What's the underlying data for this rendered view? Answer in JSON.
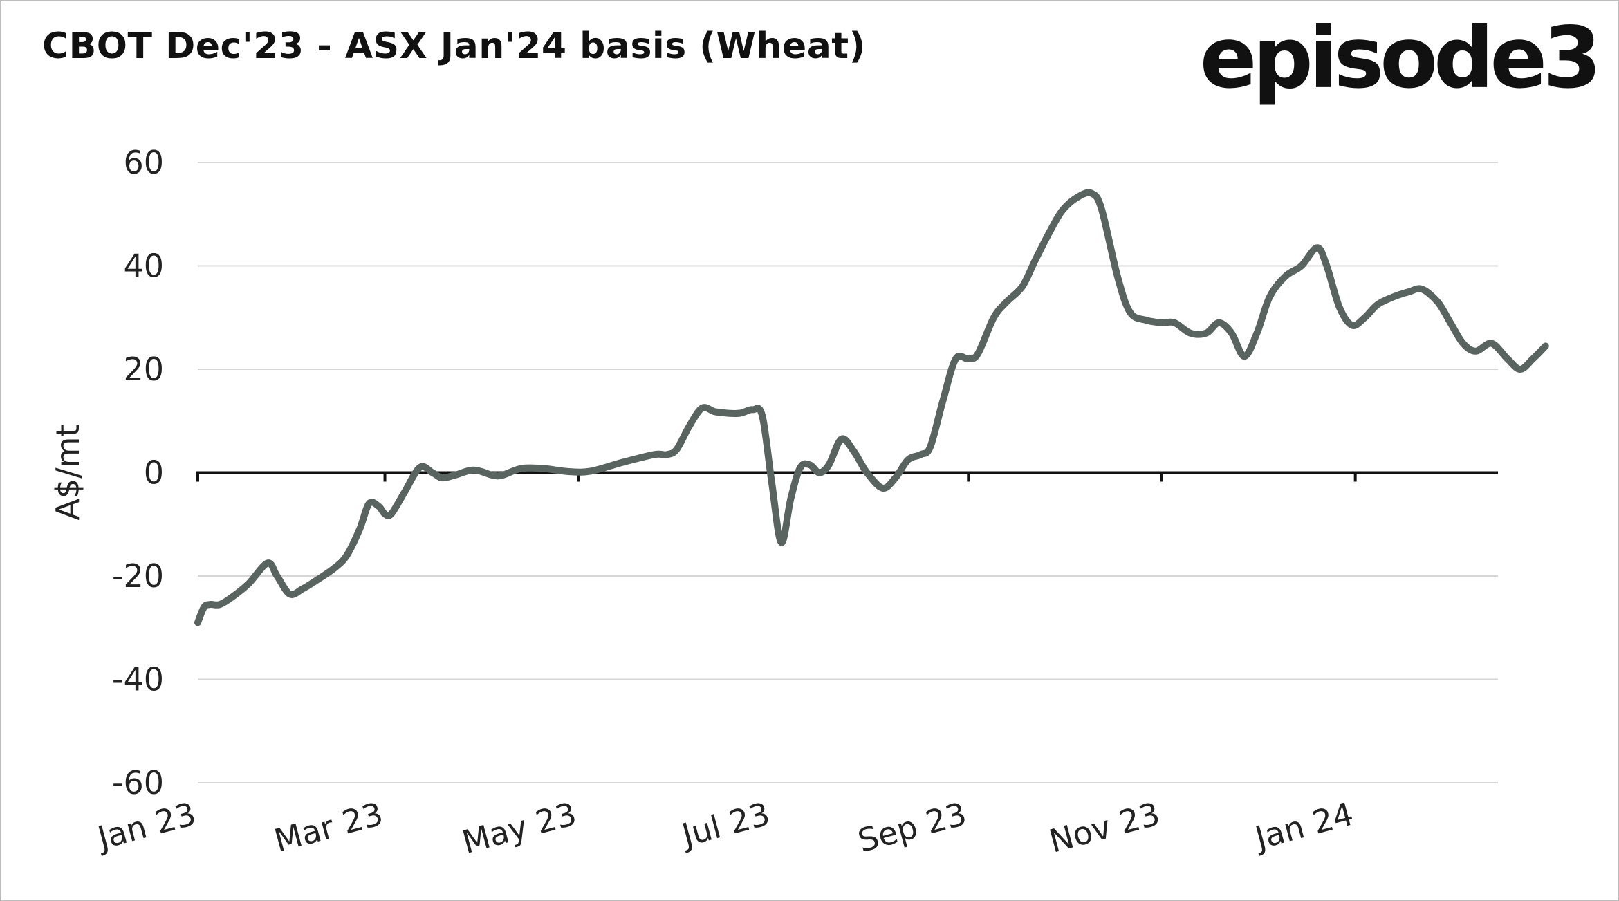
{
  "chart_data": {
    "type": "line",
    "title": "CBOT Dec'23 - ASX Jan'24 basis (Wheat)",
    "ylabel": "A$/mt",
    "xlabel": "",
    "ylim": [
      -60,
      60
    ],
    "yticks": [
      60,
      40,
      20,
      0,
      -20,
      -40,
      -60
    ],
    "xlim": [
      "2023-01-01",
      "2024-02-15"
    ],
    "xtick_labels": [
      "Jan 23",
      "Mar 23",
      "May 23",
      "Jul 23",
      "Sep 23",
      "Nov 23",
      "Jan 24"
    ],
    "xtick_dates": [
      "2023-01-01",
      "2023-03-01",
      "2023-05-01",
      "2023-07-01",
      "2023-09-01",
      "2023-11-01",
      "2024-01-01"
    ],
    "grid": "horizontal",
    "legend": "none",
    "line_color": "#59635f",
    "series": [
      {
        "points": [
          [
            "2023-01-01",
            -29
          ],
          [
            "2023-01-03",
            -26
          ],
          [
            "2023-01-05",
            -25.5
          ],
          [
            "2023-01-08",
            -25.5
          ],
          [
            "2023-01-12",
            -24
          ],
          [
            "2023-01-17",
            -21.5
          ],
          [
            "2023-01-23",
            -17.5
          ],
          [
            "2023-01-26",
            -20
          ],
          [
            "2023-01-30",
            -23.5
          ],
          [
            "2023-02-03",
            -22.5
          ],
          [
            "2023-02-07",
            -21
          ],
          [
            "2023-02-13",
            -18.5
          ],
          [
            "2023-02-17",
            -16
          ],
          [
            "2023-02-21",
            -11
          ],
          [
            "2023-02-24",
            -6
          ],
          [
            "2023-02-27",
            -6.5
          ],
          [
            "2023-03-01",
            -8
          ],
          [
            "2023-03-03",
            -8
          ],
          [
            "2023-03-07",
            -4
          ],
          [
            "2023-03-12",
            1
          ],
          [
            "2023-03-16",
            0
          ],
          [
            "2023-03-19",
            -1
          ],
          [
            "2023-03-23",
            -0.5
          ],
          [
            "2023-03-29",
            0.5
          ],
          [
            "2023-04-04",
            -0.5
          ],
          [
            "2023-04-07",
            -0.5
          ],
          [
            "2023-04-13",
            0.8
          ],
          [
            "2023-04-20",
            0.8
          ],
          [
            "2023-04-28",
            0.2
          ],
          [
            "2023-05-05",
            0.3
          ],
          [
            "2023-05-15",
            2
          ],
          [
            "2023-05-25",
            3.5
          ],
          [
            "2023-05-29",
            3.5
          ],
          [
            "2023-06-01",
            4.5
          ],
          [
            "2023-06-05",
            9
          ],
          [
            "2023-06-09",
            12.5
          ],
          [
            "2023-06-13",
            11.8
          ],
          [
            "2023-06-17",
            11.5
          ],
          [
            "2023-06-21",
            11.5
          ],
          [
            "2023-06-25",
            12.2
          ],
          [
            "2023-06-28",
            11
          ],
          [
            "2023-07-01",
            -2
          ],
          [
            "2023-07-04",
            -13.5
          ],
          [
            "2023-07-07",
            -5
          ],
          [
            "2023-07-10",
            1
          ],
          [
            "2023-07-13",
            1.5
          ],
          [
            "2023-07-16",
            0
          ],
          [
            "2023-07-19",
            1.5
          ],
          [
            "2023-07-23",
            6.5
          ],
          [
            "2023-07-27",
            4
          ],
          [
            "2023-07-31",
            0
          ],
          [
            "2023-08-05",
            -3
          ],
          [
            "2023-08-09",
            -1
          ],
          [
            "2023-08-13",
            2.5
          ],
          [
            "2023-08-17",
            3.5
          ],
          [
            "2023-08-20",
            5
          ],
          [
            "2023-08-24",
            14
          ],
          [
            "2023-08-28",
            22
          ],
          [
            "2023-09-01",
            22
          ],
          [
            "2023-09-04",
            23
          ],
          [
            "2023-09-09",
            30
          ],
          [
            "2023-09-13",
            33
          ],
          [
            "2023-09-18",
            36
          ],
          [
            "2023-09-22",
            41
          ],
          [
            "2023-09-27",
            47
          ],
          [
            "2023-10-01",
            51
          ],
          [
            "2023-10-06",
            53.5
          ],
          [
            "2023-10-10",
            54
          ],
          [
            "2023-10-13",
            51
          ],
          [
            "2023-10-18",
            38
          ],
          [
            "2023-10-22",
            31
          ],
          [
            "2023-10-27",
            29.5
          ],
          [
            "2023-11-01",
            29
          ],
          [
            "2023-11-05",
            29
          ],
          [
            "2023-11-10",
            27
          ],
          [
            "2023-11-15",
            27
          ],
          [
            "2023-11-19",
            29
          ],
          [
            "2023-11-23",
            27
          ],
          [
            "2023-11-27",
            22.5
          ],
          [
            "2023-12-01",
            27
          ],
          [
            "2023-12-05",
            34
          ],
          [
            "2023-12-10",
            38
          ],
          [
            "2023-12-15",
            40
          ],
          [
            "2023-12-20",
            43.5
          ],
          [
            "2023-12-23",
            40
          ],
          [
            "2023-12-27",
            32
          ],
          [
            "2023-12-31",
            28.5
          ],
          [
            "2024-01-04",
            30
          ],
          [
            "2024-01-08",
            32.5
          ],
          [
            "2024-01-13",
            34
          ],
          [
            "2024-01-18",
            35
          ],
          [
            "2024-01-22",
            35.5
          ],
          [
            "2024-01-27",
            33
          ],
          [
            "2024-01-31",
            29
          ],
          [
            "2024-02-04",
            25
          ],
          [
            "2024-02-08",
            23.5
          ],
          [
            "2024-02-13",
            25
          ],
          [
            "2024-02-18",
            22
          ],
          [
            "2024-02-22",
            20
          ],
          [
            "2024-02-26",
            22
          ],
          [
            "2024-03-01",
            24.5
          ]
        ]
      }
    ]
  },
  "brand": {
    "logo_text": "episode3"
  }
}
